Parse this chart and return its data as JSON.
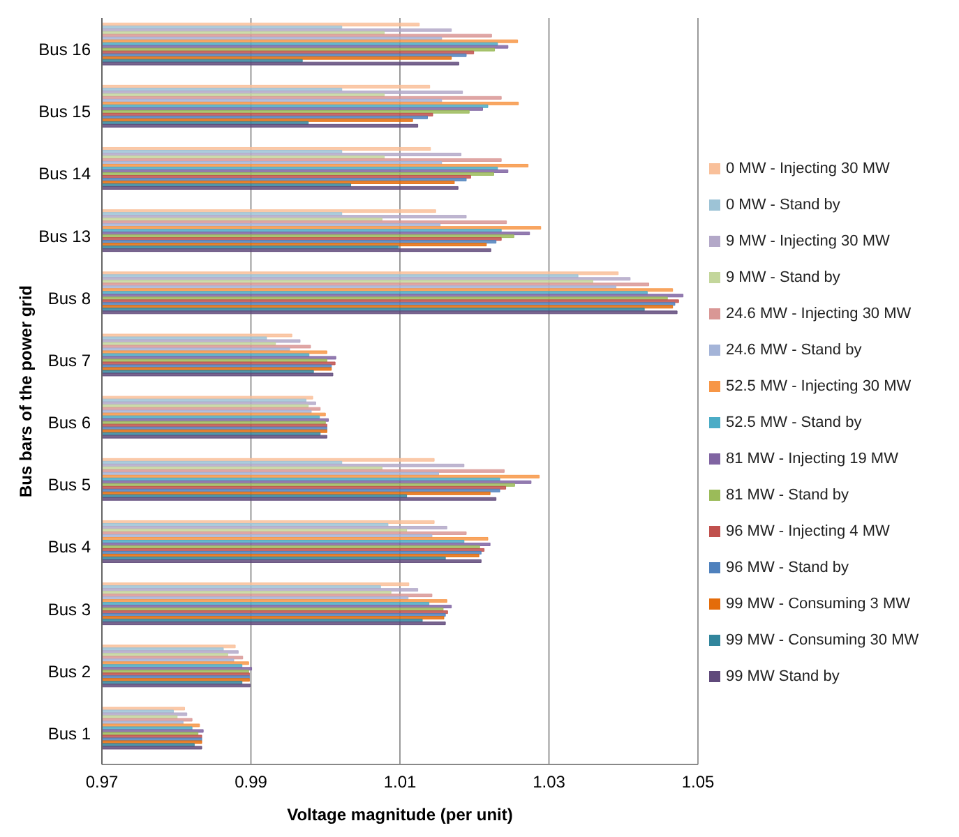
{
  "chart_data": {
    "type": "bar",
    "orientation": "horizontal",
    "xlabel": "Voltage magnitude (per unit)",
    "ylabel": "Bus bars of the power grid",
    "categories": [
      "Bus 16",
      "Bus 15",
      "Bus 14",
      "Bus 13",
      "Bus 8",
      "Bus 7",
      "Bus 6",
      "Bus 5",
      "Bus 4",
      "Bus 3",
      "Bus 2",
      "Bus 1"
    ],
    "xlim": [
      0.97,
      1.05
    ],
    "xticks": [
      0.97,
      0.99,
      1.01,
      1.03,
      1.05
    ],
    "grid": "x",
    "legend": "right",
    "series": [
      {
        "name": "0 MW - Injecting 30 MW",
        "color": "#f9c09a",
        "values": [
          1.0126,
          1.014,
          1.0141,
          1.0148,
          1.0393,
          0.9955,
          0.9983,
          1.0146,
          1.0146,
          1.0112,
          0.9879,
          0.9811
        ]
      },
      {
        "name": "0 MW - Stand by",
        "color": "#9dc3d6",
        "values": [
          1.0022,
          1.0022,
          1.0022,
          1.0022,
          1.0339,
          0.9921,
          0.9974,
          1.0022,
          1.0084,
          1.0074,
          0.9863,
          0.9796
        ]
      },
      {
        "name": "9 MW - Injecting 30 MW",
        "color": "#b3a8c8",
        "values": [
          1.0169,
          1.0184,
          1.0182,
          1.0189,
          1.0409,
          0.9966,
          0.9987,
          1.0186,
          1.0163,
          1.0124,
          0.9883,
          0.9814
        ]
      },
      {
        "name": "9 MW - Stand by",
        "color": "#c3d69b",
        "values": [
          1.0079,
          1.0079,
          1.0079,
          1.0076,
          1.0359,
          0.9933,
          0.9977,
          1.0076,
          1.0109,
          1.0088,
          0.9869,
          0.9801
        ]
      },
      {
        "name": "24.6 MW - Injecting 30 MW",
        "color": "#d99795",
        "values": [
          1.0223,
          1.0236,
          1.0236,
          1.0243,
          1.0434,
          0.998,
          0.9993,
          1.024,
          1.0189,
          1.0143,
          0.9889,
          0.9821
        ]
      },
      {
        "name": "24.6 MW - Stand by",
        "color": "#a4b4d8",
        "values": [
          1.0156,
          1.0156,
          1.0156,
          1.0154,
          1.039,
          0.9952,
          0.9981,
          1.0152,
          1.0143,
          1.0111,
          0.9877,
          0.9809
        ]
      },
      {
        "name": "52.5 MW - Injecting 30 MW",
        "color": "#f79646",
        "values": [
          1.0258,
          1.0259,
          1.0272,
          1.0289,
          1.0466,
          1.0002,
          1.0,
          1.0287,
          1.0218,
          1.0163,
          0.9897,
          0.9831
        ]
      },
      {
        "name": "52.5 MW - Stand by",
        "color": "#4bacc6",
        "values": [
          1.0231,
          1.0218,
          1.0231,
          1.0236,
          1.0432,
          0.9978,
          0.9992,
          1.0234,
          1.0186,
          1.0139,
          0.9888,
          0.9821
        ]
      },
      {
        "name": "81 MW - Injecting 19 MW",
        "color": "#8064a2",
        "values": [
          1.0245,
          1.0211,
          1.0245,
          1.0274,
          1.048,
          1.0014,
          1.0004,
          1.0276,
          1.0221,
          1.0169,
          0.9901,
          0.9836
        ]
      },
      {
        "name": "81 MW - Stand by",
        "color": "#9bbb59",
        "values": [
          1.0227,
          1.0193,
          1.0226,
          1.0253,
          1.0459,
          1.0002,
          1.0,
          1.0254,
          1.0207,
          1.0158,
          0.9897,
          0.9829
        ]
      },
      {
        "name": "96 MW - Injecting 4 MW",
        "color": "#c0504d",
        "values": [
          1.0199,
          1.0144,
          1.0195,
          1.0236,
          1.0474,
          1.0013,
          1.0002,
          1.0242,
          1.0213,
          1.0164,
          0.9898,
          0.9834
        ]
      },
      {
        "name": "96 MW - Stand by",
        "color": "#4f81bd",
        "values": [
          1.0189,
          1.0137,
          1.0189,
          1.0229,
          1.0469,
          1.0008,
          1.0002,
          1.0234,
          1.0209,
          1.0161,
          0.9898,
          0.9834
        ]
      },
      {
        "name": "99 MW - Consuming 3 MW",
        "color": "#e46c0a",
        "values": [
          1.0169,
          1.0117,
          1.0173,
          1.0216,
          1.0466,
          1.0008,
          1.0002,
          1.0221,
          1.0206,
          1.0159,
          0.9898,
          0.9834
        ]
      },
      {
        "name": "99 MW - Consuming 30 MW",
        "color": "#31859c",
        "values": [
          0.9969,
          0.9977,
          1.0034,
          1.0098,
          1.0428,
          0.9984,
          0.9993,
          1.0109,
          1.0161,
          1.013,
          0.9888,
          0.9824
        ]
      },
      {
        "name": "99 MW  Stand by",
        "color": "#604a7b",
        "values": [
          1.0179,
          1.0124,
          1.0178,
          1.0222,
          1.0472,
          1.001,
          1.0002,
          1.0229,
          1.0209,
          1.0161,
          0.9899,
          0.9834
        ]
      }
    ]
  }
}
